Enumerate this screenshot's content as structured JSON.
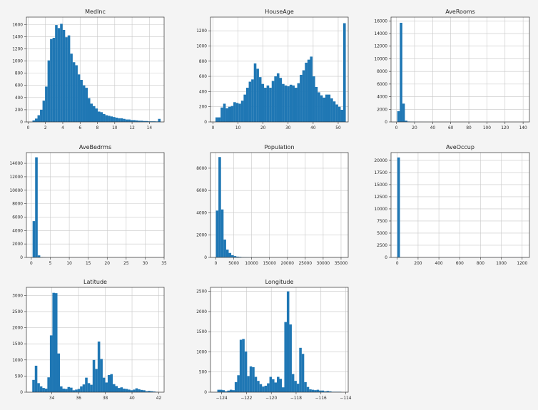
{
  "figure": {
    "title": ""
  },
  "chart_data": [
    {
      "type": "bar",
      "subtype": "histogram",
      "title": "MedInc",
      "xlim": [
        -0.2,
        15.7
      ],
      "ylim": [
        0,
        1720
      ],
      "xticks": [
        0,
        2,
        4,
        6,
        8,
        10,
        12,
        14
      ],
      "yticks": [
        0,
        200,
        400,
        600,
        800,
        1000,
        1200,
        1400,
        1600
      ],
      "grid": true,
      "color": "#1f77b4",
      "bin_start": 0.5,
      "bin_width": 0.29,
      "values": [
        25,
        55,
        110,
        200,
        350,
        580,
        1010,
        1360,
        1380,
        1590,
        1540,
        1610,
        1510,
        1390,
        1420,
        1120,
        980,
        930,
        780,
        690,
        600,
        560,
        390,
        300,
        260,
        220,
        170,
        160,
        130,
        110,
        100,
        90,
        80,
        70,
        60,
        60,
        50,
        40,
        40,
        30,
        30,
        25,
        20,
        20,
        15,
        15,
        10,
        10,
        10,
        8,
        50
      ]
    },
    {
      "type": "bar",
      "subtype": "histogram",
      "title": "HouseAge",
      "xlim": [
        -1,
        54
      ],
      "ylim": [
        0,
        1380
      ],
      "xticks": [
        0,
        10,
        20,
        30,
        40,
        50
      ],
      "yticks": [
        0,
        200,
        400,
        600,
        800,
        1000,
        1200
      ],
      "grid": true,
      "color": "#1f77b4",
      "bin_start": 1,
      "bin_width": 1.02,
      "values": [
        60,
        60,
        190,
        240,
        180,
        200,
        210,
        260,
        250,
        240,
        280,
        360,
        450,
        530,
        560,
        770,
        700,
        590,
        500,
        450,
        480,
        450,
        540,
        600,
        640,
        580,
        500,
        480,
        470,
        490,
        480,
        450,
        510,
        620,
        680,
        780,
        820,
        860,
        600,
        460,
        390,
        350,
        320,
        360,
        360,
        310,
        270,
        230,
        200,
        160,
        1300
      ]
    },
    {
      "type": "bar",
      "subtype": "histogram",
      "title": "AveRooms",
      "xlim": [
        -6,
        147
      ],
      "ylim": [
        0,
        16600
      ],
      "xticks": [
        0,
        20,
        40,
        60,
        80,
        100,
        120,
        140
      ],
      "yticks": [
        0,
        2000,
        4000,
        6000,
        8000,
        10000,
        12000,
        14000,
        16000
      ],
      "grid": true,
      "color": "#1f77b4",
      "bin_start": 0.9,
      "bin_width": 2.8,
      "values": [
        1700,
        15700,
        2900,
        200,
        60,
        30,
        20,
        10,
        10,
        8,
        6,
        5,
        4,
        4,
        3,
        3,
        2,
        2,
        2,
        2,
        2,
        2,
        2,
        1,
        1,
        1,
        1,
        1,
        1,
        1,
        1,
        1,
        1,
        1,
        1,
        1,
        1,
        1,
        1,
        1,
        1,
        1,
        1,
        1,
        1,
        1,
        1,
        1,
        1,
        1
      ]
    },
    {
      "type": "bar",
      "subtype": "histogram",
      "title": "AveBedrms",
      "xlim": [
        -1.3,
        35
      ],
      "ylim": [
        0,
        15600
      ],
      "xticks": [
        0,
        5,
        10,
        15,
        20,
        25,
        30,
        35
      ],
      "yticks": [
        0,
        2000,
        4000,
        6000,
        8000,
        10000,
        12000,
        14000
      ],
      "grid": true,
      "color": "#1f77b4",
      "bin_start": 0.33,
      "bin_width": 0.67,
      "values": [
        5400,
        14900,
        300,
        50,
        20,
        10,
        8,
        6,
        5,
        4,
        3,
        3,
        2,
        2,
        2,
        2,
        2,
        1,
        1,
        1,
        1,
        1,
        1,
        1,
        1,
        1,
        1,
        1,
        1,
        1,
        1,
        1,
        1,
        1,
        1,
        1,
        1,
        1,
        1,
        1,
        1,
        1,
        1,
        1,
        1,
        1,
        1,
        1,
        1,
        1
      ]
    },
    {
      "type": "bar",
      "subtype": "histogram",
      "title": "Population",
      "xlim": [
        -1500,
        37000
      ],
      "ylim": [
        0,
        9400
      ],
      "xticks": [
        0,
        5000,
        10000,
        15000,
        20000,
        25000,
        30000,
        35000
      ],
      "yticks": [
        0,
        2000,
        4000,
        6000,
        8000
      ],
      "grid": true,
      "color": "#1f77b4",
      "bin_start": 3,
      "bin_width": 714,
      "values": [
        4200,
        9000,
        4300,
        1600,
        700,
        400,
        200,
        120,
        70,
        50,
        30,
        25,
        20,
        15,
        10,
        8,
        6,
        5,
        4,
        3,
        3,
        2,
        2,
        2,
        2,
        1,
        1,
        1,
        1,
        1,
        1,
        1,
        1,
        1,
        1,
        1,
        1,
        1,
        1,
        1,
        1,
        1,
        1,
        1,
        1,
        1,
        1,
        1,
        1,
        1
      ]
    },
    {
      "type": "bar",
      "subtype": "histogram",
      "title": "AveOccup",
      "xlim": [
        -60,
        1270
      ],
      "ylim": [
        0,
        21600
      ],
      "xticks": [
        0,
        200,
        400,
        600,
        800,
        1000,
        1200
      ],
      "yticks": [
        0,
        2500,
        5000,
        7500,
        10000,
        12500,
        15000,
        17500,
        20000
      ],
      "grid": true,
      "color": "#1f77b4",
      "bin_start": 0.7,
      "bin_width": 24.8,
      "values": [
        20600,
        20,
        6,
        3,
        2,
        2,
        1,
        1,
        1,
        1,
        1,
        1,
        1,
        1,
        1,
        1,
        1,
        1,
        1,
        1,
        1,
        1,
        1,
        1,
        1,
        1,
        1,
        1,
        1,
        1,
        1,
        1,
        1,
        1,
        1,
        1,
        1,
        1,
        1,
        1,
        1,
        1,
        1,
        1,
        1,
        1,
        1,
        1,
        1,
        1
      ]
    },
    {
      "type": "bar",
      "subtype": "histogram",
      "title": "Latitude",
      "xlim": [
        32.1,
        42.4
      ],
      "ylim": [
        0,
        3250
      ],
      "xticks": [
        34,
        36,
        38,
        40,
        42
      ],
      "yticks": [
        0,
        500,
        1000,
        1500,
        2000,
        2500,
        3000
      ],
      "grid": true,
      "color": "#1f77b4",
      "bin_start": 32.54,
      "bin_width": 0.188,
      "values": [
        380,
        820,
        280,
        180,
        130,
        110,
        460,
        1760,
        3080,
        3070,
        1200,
        180,
        110,
        100,
        160,
        140,
        60,
        80,
        100,
        180,
        240,
        450,
        280,
        230,
        1000,
        720,
        1570,
        1030,
        450,
        300,
        530,
        560,
        250,
        190,
        130,
        150,
        110,
        100,
        80,
        60,
        80,
        120,
        90,
        70,
        60,
        30,
        40,
        30,
        20,
        10
      ]
    },
    {
      "type": "bar",
      "subtype": "histogram",
      "title": "Longitude",
      "xlim": [
        -124.9,
        -113.8
      ],
      "ylim": [
        0,
        2600
      ],
      "xticks": [
        -124,
        -122,
        -120,
        -118,
        -116,
        -114
      ],
      "yticks": [
        0,
        500,
        1000,
        1500,
        2000,
        2500
      ],
      "grid": true,
      "color": "#1f77b4",
      "bin_start": -124.35,
      "bin_width": 0.2,
      "values": [
        60,
        60,
        50,
        20,
        40,
        60,
        50,
        250,
        420,
        1300,
        1320,
        1010,
        400,
        640,
        620,
        380,
        280,
        200,
        140,
        160,
        220,
        380,
        320,
        240,
        380,
        330,
        120,
        1740,
        2500,
        1680,
        450,
        280,
        210,
        1100,
        950,
        250,
        130,
        70,
        60,
        50,
        60,
        40,
        40,
        20,
        30,
        20,
        10,
        10,
        10,
        10
      ]
    }
  ]
}
